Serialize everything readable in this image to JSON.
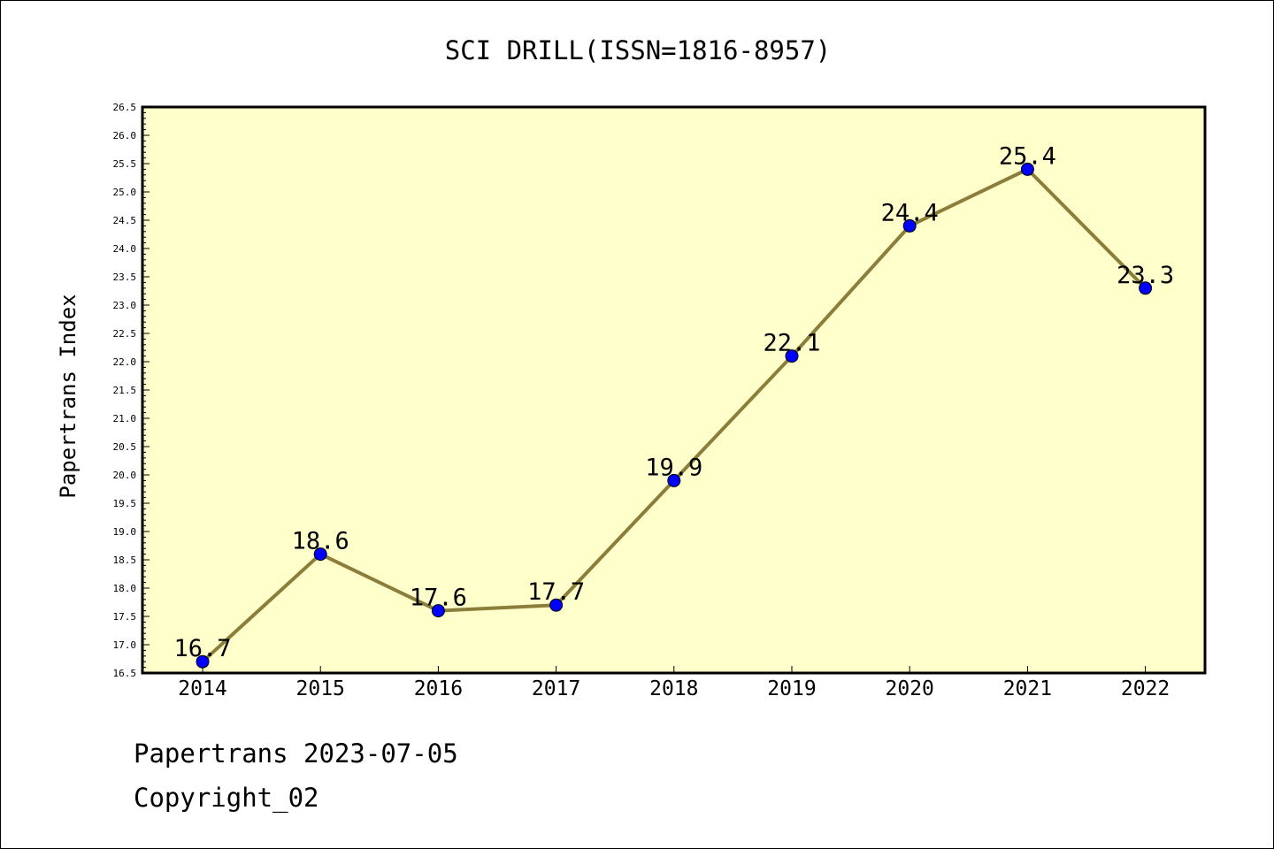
{
  "chart_data": {
    "type": "line",
    "title": "SCI DRILL(ISSN=1816-8957)",
    "ylabel": "Papertrans Index",
    "xlabel": "",
    "categories": [
      "2014",
      "2015",
      "2016",
      "2017",
      "2018",
      "2019",
      "2020",
      "2021",
      "2022"
    ],
    "series": [
      {
        "values": [
          16.7,
          18.6,
          17.6,
          17.7,
          19.9,
          22.1,
          24.4,
          25.4,
          23.3
        ],
        "labels": [
          "16.7",
          "18.6",
          "17.6",
          "17.7",
          "19.9",
          "22.1",
          "24.4",
          "25.4",
          "23.3"
        ]
      }
    ],
    "ylim": [
      16.5,
      26.5
    ],
    "ytick_step": 0.5,
    "yticks": [
      "16.5",
      "17.0",
      "17.5",
      "18.0",
      "18.5",
      "19.0",
      "19.5",
      "20.0",
      "20.5",
      "21.0",
      "21.5",
      "22.0",
      "22.5",
      "23.0",
      "23.5",
      "24.0",
      "24.5",
      "25.0",
      "25.5",
      "26.0",
      "26.5"
    ],
    "grid": false,
    "legend": "none",
    "colors": {
      "plot_background": "#ffffcc",
      "line": "#8b7d3a",
      "marker": "#0000ff"
    }
  },
  "footer": {
    "line1": "Papertrans 2023-07-05",
    "line2": "Copyright_02"
  }
}
